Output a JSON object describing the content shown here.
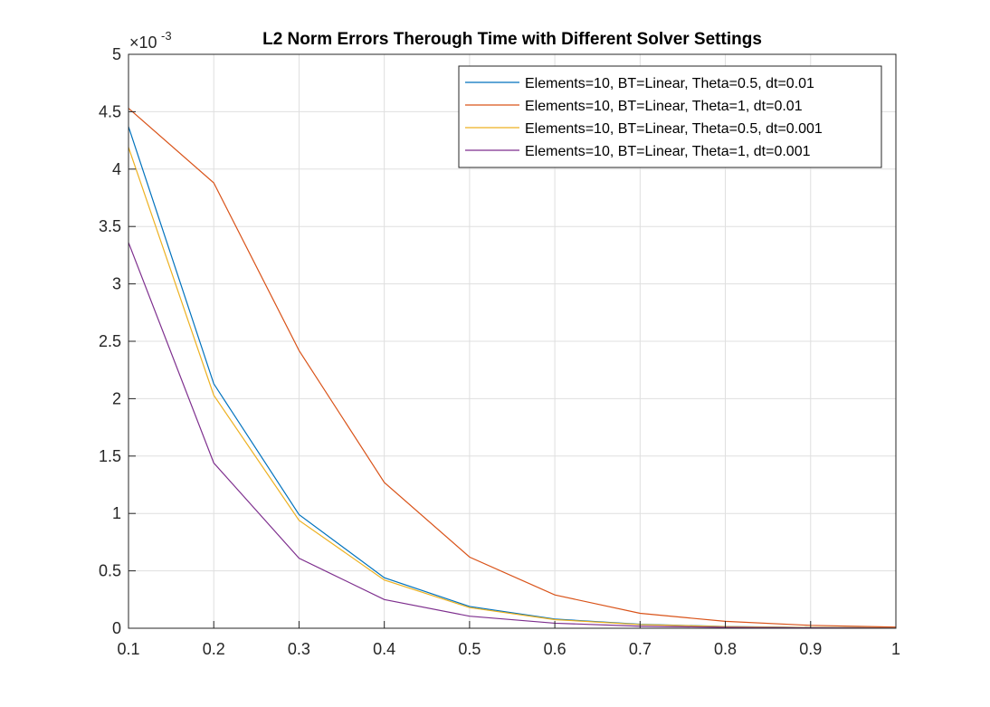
{
  "chart_data": {
    "type": "line",
    "title": "L2 Norm Errors Therough Time with Different Solver Settings",
    "xlabel": "",
    "ylabel": "",
    "xlim": [
      0.1,
      1
    ],
    "ylim": [
      0,
      5
    ],
    "y_exponent_label": {
      "base": "×10",
      "exponent": "-3"
    },
    "grid": true,
    "legend_placement": "top-right",
    "x_ticks": [
      "0.1",
      "0.2",
      "0.3",
      "0.4",
      "0.5",
      "0.6",
      "0.7",
      "0.8",
      "0.9",
      "1"
    ],
    "y_ticks": [
      "0",
      "0.5",
      "1",
      "1.5",
      "2",
      "2.5",
      "3",
      "3.5",
      "4",
      "4.5",
      "5"
    ],
    "x": [
      0.1,
      0.2,
      0.3,
      0.4,
      0.5,
      0.6,
      0.7,
      0.8,
      0.9,
      1.0
    ],
    "series": [
      {
        "name": "Elements=10, BT=Linear, Theta=0.5, dt=0.01",
        "color": "#0072BD",
        "values": [
          4.37,
          2.13,
          0.99,
          0.44,
          0.19,
          0.08,
          0.035,
          0.015,
          0.007,
          0.003
        ]
      },
      {
        "name": "Elements=10, BT=Linear, Theta=1, dt=0.01",
        "color": "#D95319",
        "values": [
          4.53,
          3.88,
          2.42,
          1.27,
          0.62,
          0.29,
          0.13,
          0.06,
          0.025,
          0.01
        ]
      },
      {
        "name": "Elements=10, BT=Linear, Theta=0.5, dt=0.001",
        "color": "#EDB120",
        "values": [
          4.19,
          2.03,
          0.94,
          0.42,
          0.18,
          0.075,
          0.032,
          0.014,
          0.006,
          0.003
        ]
      },
      {
        "name": "Elements=10, BT=Linear, Theta=1, dt=0.001",
        "color": "#7E2F8E",
        "values": [
          3.36,
          1.44,
          0.61,
          0.25,
          0.105,
          0.044,
          0.018,
          0.008,
          0.003,
          0.001
        ]
      }
    ]
  }
}
